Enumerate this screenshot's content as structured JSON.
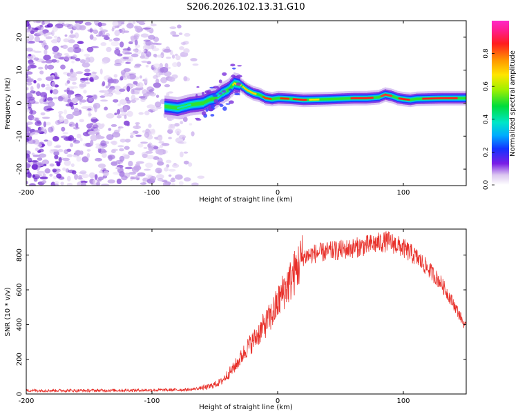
{
  "figure": {
    "title": "S206.2026.102.13.31.G10"
  },
  "chart_data": [
    {
      "type": "heatmap",
      "title": "S206.2026.102.13.31.G10",
      "xlabel": "Height of straight line (km)",
      "ylabel": "Frequency (Hz)",
      "xlim": [
        -200,
        150
      ],
      "ylim": [
        -25,
        25
      ],
      "xticks": [
        -200,
        -100,
        0,
        100
      ],
      "yticks": [
        -20,
        -10,
        0,
        10,
        20
      ],
      "colorbar": {
        "label": "Normalized spectral amplitude",
        "range": [
          0,
          1
        ],
        "ticks": [
          0.0,
          0.2,
          0.4,
          0.6,
          0.8
        ]
      },
      "ridge": {
        "x": [
          -90,
          -80,
          -70,
          -60,
          -55,
          -50,
          -45,
          -40,
          -35,
          -30,
          -25,
          -20,
          -15,
          -10,
          -5,
          0,
          10,
          20,
          40,
          60,
          70,
          80,
          85,
          90,
          95,
          100,
          105,
          110,
          130,
          150
        ],
        "y": [
          -1,
          -1.5,
          -0.5,
          0,
          1,
          1.5,
          3,
          4,
          6,
          5.5,
          4,
          3,
          2.5,
          1.5,
          1.2,
          1.5,
          1.3,
          1,
          1.2,
          1.5,
          1.5,
          1.8,
          2.6,
          2.2,
          1.5,
          1.2,
          1,
          1.3,
          1.5,
          1.5
        ]
      },
      "noise_region": {
        "x_range": [
          -200,
          -60
        ],
        "y_range": [
          -25,
          25
        ]
      }
    },
    {
      "type": "line",
      "xlabel": "Height of straight line (km)",
      "ylabel": "SNR (10 * v/v)",
      "xlim": [
        -200,
        150
      ],
      "ylim": [
        0,
        950
      ],
      "xticks": [
        -200,
        -100,
        0,
        100
      ],
      "yticks": [
        0,
        200,
        400,
        600,
        800
      ],
      "series": [
        {
          "name": "SNR",
          "color": "#e8302a",
          "x": [
            -200,
            -150,
            -100,
            -70,
            -55,
            -45,
            -40,
            -35,
            -30,
            -25,
            -20,
            -15,
            -10,
            -5,
            0,
            5,
            10,
            15,
            20,
            30,
            40,
            50,
            60,
            70,
            80,
            88,
            100,
            110,
            120,
            130,
            140,
            150
          ],
          "y": [
            20,
            20,
            22,
            25,
            40,
            70,
            110,
            150,
            200,
            260,
            300,
            350,
            400,
            450,
            520,
            600,
            650,
            720,
            790,
            810,
            820,
            830,
            840,
            855,
            870,
            880,
            840,
            790,
            720,
            640,
            520,
            380
          ]
        }
      ]
    }
  ]
}
